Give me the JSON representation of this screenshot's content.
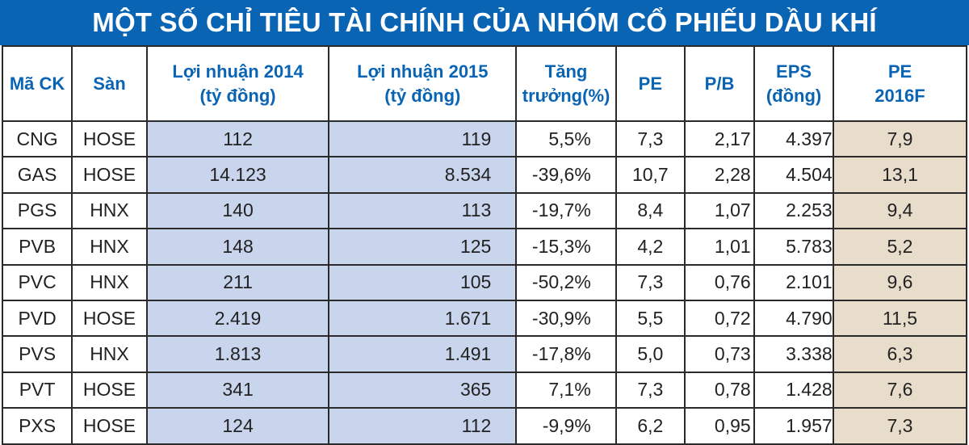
{
  "title": "MỘT SỐ CHỈ TIÊU TÀI CHÍNH CỦA NHÓM CỔ PHIẾU DẦU KHÍ",
  "colors": {
    "title_bg": "#0a64b4",
    "header_text": "#0a64b4",
    "profit_cols_bg": "#c8d5ec",
    "pe2016f_bg": "#e8dccb",
    "border": "#2a2a2a"
  },
  "table": {
    "headers": [
      {
        "line1": "Mã CK",
        "line2": ""
      },
      {
        "line1": "Sàn",
        "line2": ""
      },
      {
        "line1": "Lợi nhuận 2014",
        "line2": "(tỷ đồng)"
      },
      {
        "line1": "Lợi nhuận 2015",
        "line2": "(tỷ đồng)"
      },
      {
        "line1": "Tăng",
        "line2": "trưởng(%)"
      },
      {
        "line1": "PE",
        "line2": ""
      },
      {
        "line1": "P/B",
        "line2": ""
      },
      {
        "line1": "EPS",
        "line2": "(đồng)"
      },
      {
        "line1": "PE",
        "line2": "2016F"
      }
    ],
    "rows": [
      {
        "ticker": "CNG",
        "exchange": "HOSE",
        "profit_2014": "112",
        "profit_2015": "119",
        "growth": "5,5%",
        "pe": "7,3",
        "pb": "2,17",
        "eps": "4.397",
        "pe_2016f": "7,9"
      },
      {
        "ticker": "GAS",
        "exchange": "HOSE",
        "profit_2014": "14.123",
        "profit_2015": "8.534",
        "growth": "-39,6%",
        "pe": "10,7",
        "pb": "2,28",
        "eps": "4.504",
        "pe_2016f": "13,1"
      },
      {
        "ticker": "PGS",
        "exchange": "HNX",
        "profit_2014": "140",
        "profit_2015": "113",
        "growth": "-19,7%",
        "pe": "8,4",
        "pb": "1,07",
        "eps": "2.253",
        "pe_2016f": "9,4"
      },
      {
        "ticker": "PVB",
        "exchange": "HNX",
        "profit_2014": "148",
        "profit_2015": "125",
        "growth": "-15,3%",
        "pe": "4,2",
        "pb": "1,01",
        "eps": "5.783",
        "pe_2016f": "5,2"
      },
      {
        "ticker": "PVC",
        "exchange": "HNX",
        "profit_2014": "211",
        "profit_2015": "105",
        "growth": "-50,2%",
        "pe": "7,3",
        "pb": "0,76",
        "eps": "2.101",
        "pe_2016f": "9,6"
      },
      {
        "ticker": "PVD",
        "exchange": "HOSE",
        "profit_2014": "2.419",
        "profit_2015": "1.671",
        "growth": "-30,9%",
        "pe": "5,5",
        "pb": "0,72",
        "eps": "4.790",
        "pe_2016f": "11,5"
      },
      {
        "ticker": "PVS",
        "exchange": "HNX",
        "profit_2014": "1.813",
        "profit_2015": "1.491",
        "growth": "-17,8%",
        "pe": "5,0",
        "pb": "0,73",
        "eps": "3.338",
        "pe_2016f": "6,3"
      },
      {
        "ticker": "PVT",
        "exchange": "HOSE",
        "profit_2014": "341",
        "profit_2015": "365",
        "growth": "7,1%",
        "pe": "7,3",
        "pb": "0,78",
        "eps": "1.428",
        "pe_2016f": "7,6"
      },
      {
        "ticker": "PXS",
        "exchange": "HOSE",
        "profit_2014": "124",
        "profit_2015": "112",
        "growth": "-9,9%",
        "pe": "6,2",
        "pb": "0,95",
        "eps": "1.957",
        "pe_2016f": "7,3"
      }
    ]
  }
}
